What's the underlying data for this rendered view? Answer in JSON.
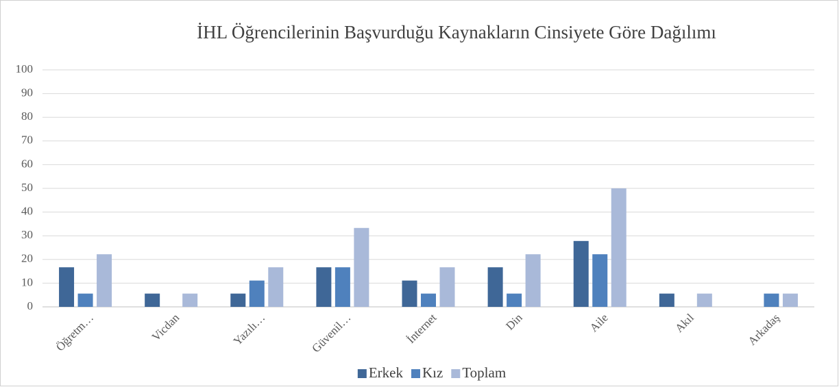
{
  "chart_data": {
    "type": "bar",
    "title": "İHL Öğrencilerinin Başvurduğu Kaynakların Cinsiyete Göre Dağılımı",
    "categories": [
      "Öğretm…",
      "Vicdan",
      "Yazılı…",
      "Güvenil…",
      "İnternet",
      "Din",
      "Aile",
      "Akıl",
      "Arkadaş"
    ],
    "series": [
      {
        "name": "Erkek",
        "color": "#3f6797",
        "values": [
          16.7,
          5.6,
          5.6,
          16.7,
          11.1,
          16.7,
          27.8,
          5.6,
          0
        ]
      },
      {
        "name": "Kız",
        "color": "#4f81bd",
        "values": [
          5.6,
          0,
          11.1,
          16.7,
          5.6,
          5.6,
          22.2,
          0,
          5.6
        ]
      },
      {
        "name": "Toplam",
        "color": "#a9b9d9",
        "values": [
          22.2,
          5.6,
          16.7,
          33.3,
          16.7,
          22.2,
          50,
          5.6,
          5.6
        ]
      }
    ],
    "ylim": [
      0,
      100
    ],
    "yticks": [
      0,
      10,
      20,
      30,
      40,
      50,
      60,
      70,
      80,
      90,
      100
    ],
    "grid": true,
    "legend": "bottom"
  }
}
